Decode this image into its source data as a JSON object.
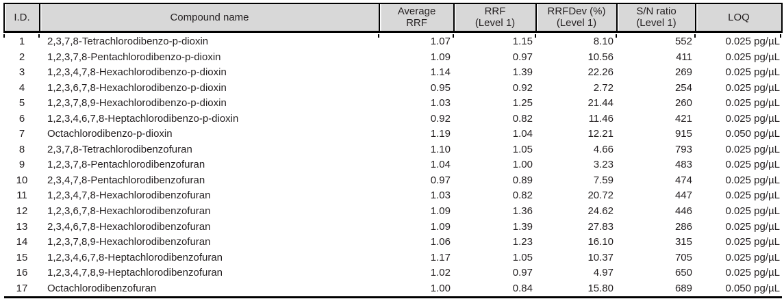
{
  "table": {
    "columns": [
      {
        "key": "id",
        "label": "I.D."
      },
      {
        "key": "compound",
        "label": "Compound name"
      },
      {
        "key": "avg_rrf",
        "label": "Average\nRRF"
      },
      {
        "key": "rrf_l1",
        "label": "RRF\n(Level 1)"
      },
      {
        "key": "rrfdev_l1",
        "label": "RRFDev (%)\n(Level 1)"
      },
      {
        "key": "sn_l1",
        "label": "S/N ratio\n(Level 1)"
      },
      {
        "key": "loq",
        "label": "LOQ"
      }
    ],
    "rows": [
      {
        "id": "1",
        "compound": "2,3,7,8-Tetrachlorodibenzo-p-dioxin",
        "avg_rrf": "1.07",
        "rrf_l1": "1.15",
        "rrfdev_l1": "8.10",
        "sn_l1": "552",
        "loq": "0.025 pg/µL"
      },
      {
        "id": "2",
        "compound": "1,2,3,7,8-Pentachlorodibenzo-p-dioxin",
        "avg_rrf": "1.09",
        "rrf_l1": "0.97",
        "rrfdev_l1": "10.56",
        "sn_l1": "411",
        "loq": "0.025 pg/µL"
      },
      {
        "id": "3",
        "compound": "1,2,3,4,7,8-Hexachlorodibenzo-p-dioxin",
        "avg_rrf": "1.14",
        "rrf_l1": "1.39",
        "rrfdev_l1": "22.26",
        "sn_l1": "269",
        "loq": "0.025 pg/µL"
      },
      {
        "id": "4",
        "compound": "1,2,3,6,7,8-Hexachlorodibenzo-p-dioxin",
        "avg_rrf": "0.95",
        "rrf_l1": "0.92",
        "rrfdev_l1": "2.72",
        "sn_l1": "254",
        "loq": "0.025 pg/µL"
      },
      {
        "id": "5",
        "compound": "1,2,3,7,8,9-Hexachlorodibenzo-p-dioxin",
        "avg_rrf": "1.03",
        "rrf_l1": "1.25",
        "rrfdev_l1": "21.44",
        "sn_l1": "260",
        "loq": "0.025 pg/µL"
      },
      {
        "id": "6",
        "compound": "1,2,3,4,6,7,8-Heptachlorodibenzo-p-dioxin",
        "avg_rrf": "0.92",
        "rrf_l1": "0.82",
        "rrfdev_l1": "11.46",
        "sn_l1": "421",
        "loq": "0.025 pg/µL"
      },
      {
        "id": "7",
        "compound": "Octachlorodibenzo-p-dioxin",
        "avg_rrf": "1.19",
        "rrf_l1": "1.04",
        "rrfdev_l1": "12.21",
        "sn_l1": "915",
        "loq": "0.050 pg/µL"
      },
      {
        "id": "8",
        "compound": "2,3,7,8-Tetrachlorodibenzofuran",
        "avg_rrf": "1.10",
        "rrf_l1": "1.05",
        "rrfdev_l1": "4.66",
        "sn_l1": "793",
        "loq": "0.025 pg/µL"
      },
      {
        "id": "9",
        "compound": "1,2,3,7,8-Pentachlorodibenzofuran",
        "avg_rrf": "1.04",
        "rrf_l1": "1.00",
        "rrfdev_l1": "3.23",
        "sn_l1": "483",
        "loq": "0.025 pg/µL"
      },
      {
        "id": "10",
        "compound": "2,3,4,7,8-Pentachlorodibenzofuran",
        "avg_rrf": "0.97",
        "rrf_l1": "0.89",
        "rrfdev_l1": "7.59",
        "sn_l1": "474",
        "loq": "0.025 pg/µL"
      },
      {
        "id": "11",
        "compound": "1,2,3,4,7,8-Hexachlorodibenzofuran",
        "avg_rrf": "1.03",
        "rrf_l1": "0.82",
        "rrfdev_l1": "20.72",
        "sn_l1": "447",
        "loq": "0.025 pg/µL"
      },
      {
        "id": "12",
        "compound": "1,2,3,6,7,8-Hexachlorodibenzofuran",
        "avg_rrf": "1.09",
        "rrf_l1": "1.36",
        "rrfdev_l1": "24.62",
        "sn_l1": "446",
        "loq": "0.025 pg/µL"
      },
      {
        "id": "13",
        "compound": "2,3,4,6,7,8-Hexachlorodibenzofuran",
        "avg_rrf": "1.09",
        "rrf_l1": "1.39",
        "rrfdev_l1": "27.83",
        "sn_l1": "286",
        "loq": "0.025 pg/µL"
      },
      {
        "id": "14",
        "compound": "1,2,3,7,8,9-Hexachlorodibenzofuran",
        "avg_rrf": "1.06",
        "rrf_l1": "1.23",
        "rrfdev_l1": "16.10",
        "sn_l1": "315",
        "loq": "0.025 pg/µL"
      },
      {
        "id": "15",
        "compound": "1,2,3,4,6,7,8-Heptachlorodibenzofuran",
        "avg_rrf": "1.17",
        "rrf_l1": "1.05",
        "rrfdev_l1": "10.37",
        "sn_l1": "705",
        "loq": "0.025 pg/µL"
      },
      {
        "id": "16",
        "compound": "1,2,3,4,7,8,9-Heptachlorodibenzofuran",
        "avg_rrf": "1.02",
        "rrf_l1": "0.97",
        "rrfdev_l1": "4.97",
        "sn_l1": "650",
        "loq": "0.025 pg/µL"
      },
      {
        "id": "17",
        "compound": "Octachlorodibenzofuran",
        "avg_rrf": "1.00",
        "rrf_l1": "0.84",
        "rrfdev_l1": "15.80",
        "sn_l1": "689",
        "loq": "0.050 pg/µL"
      }
    ],
    "colors": {
      "header_bg": "#d8d8d8",
      "rule": "#000000",
      "text": "#231f20"
    }
  }
}
